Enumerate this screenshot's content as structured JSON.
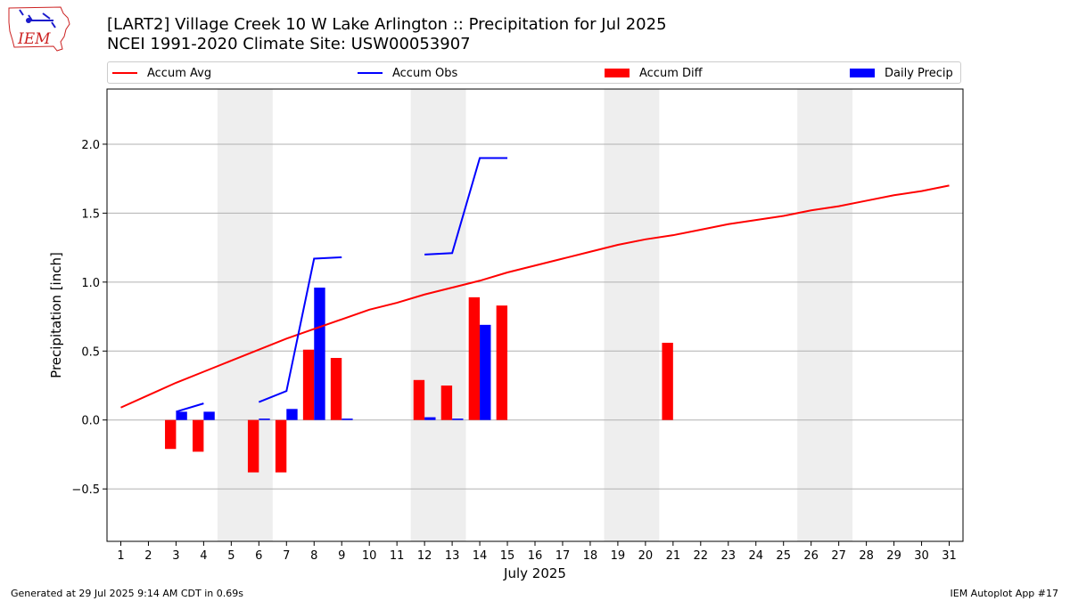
{
  "logo": {
    "text": "IEM",
    "icon": "iem-iowa-logo-icon"
  },
  "title": {
    "line1": "[LART2] Village Creek 10 W Lake Arlington :: Precipitation for Jul 2025",
    "line2": "NCEI 1991-2020 Climate Site: USW00053907"
  },
  "footer": {
    "left": "Generated at 29 Jul 2025 9:14 AM CDT in 0.69s",
    "right": "IEM Autoplot App #17"
  },
  "colors": {
    "avg": "#ff0000",
    "obs": "#0000ff",
    "diff": "#ff0000",
    "daily": "#0000ff",
    "weekend": "#eeeeee",
    "grid": "#b0b0b0"
  },
  "chart_data": {
    "type": "bar",
    "xlabel": "July 2025",
    "ylabel": "Precipitation [inch]",
    "xlim": [
      0.5,
      31.5
    ],
    "ylim": [
      -0.88,
      2.4
    ],
    "yticks": [
      -0.5,
      0.0,
      0.5,
      1.0,
      1.5,
      2.0
    ],
    "ytick_labels": [
      "−0.5",
      "0.0",
      "0.5",
      "1.0",
      "1.5",
      "2.0"
    ],
    "grid": "y",
    "legend_position": "top",
    "days": [
      1,
      2,
      3,
      4,
      5,
      6,
      7,
      8,
      9,
      10,
      11,
      12,
      13,
      14,
      15,
      16,
      17,
      18,
      19,
      20,
      21,
      22,
      23,
      24,
      25,
      26,
      27,
      28,
      29,
      30,
      31
    ],
    "weekend_shading": [
      [
        5,
        6
      ],
      [
        12,
        13
      ],
      [
        19,
        20
      ],
      [
        26,
        27
      ]
    ],
    "series": [
      {
        "name": "Accum Avg",
        "kind": "line",
        "values": [
          0.09,
          0.18,
          0.27,
          0.35,
          0.43,
          0.51,
          0.59,
          0.66,
          0.73,
          0.8,
          0.85,
          0.91,
          0.96,
          1.01,
          1.07,
          1.12,
          1.17,
          1.22,
          1.27,
          1.31,
          1.34,
          1.38,
          1.42,
          1.45,
          1.48,
          1.52,
          1.55,
          1.59,
          1.63,
          1.66,
          1.7
        ]
      },
      {
        "name": "Accum Obs",
        "kind": "line",
        "segments": [
          {
            "x": [
              3,
              4
            ],
            "y": [
              0.06,
              0.12
            ]
          },
          {
            "x": [
              6,
              7,
              8,
              9
            ],
            "y": [
              0.13,
              0.21,
              1.17,
              1.18
            ]
          },
          {
            "x": [
              12,
              13,
              14,
              15
            ],
            "y": [
              1.2,
              1.21,
              1.9,
              1.9
            ]
          }
        ]
      },
      {
        "name": "Accum Diff",
        "kind": "bar",
        "x": [
          3,
          4,
          6,
          7,
          8,
          9,
          12,
          13,
          14,
          15,
          21
        ],
        "values": [
          -0.21,
          -0.23,
          -0.38,
          -0.38,
          0.51,
          0.45,
          0.29,
          0.25,
          0.89,
          0.83,
          0.56
        ]
      },
      {
        "name": "Daily Precip",
        "kind": "bar",
        "x": [
          3,
          4,
          6,
          7,
          8,
          9,
          12,
          13,
          14
        ],
        "values": [
          0.06,
          0.06,
          0.01,
          0.08,
          0.96,
          0.01,
          0.02,
          0.01,
          0.69
        ]
      }
    ]
  }
}
